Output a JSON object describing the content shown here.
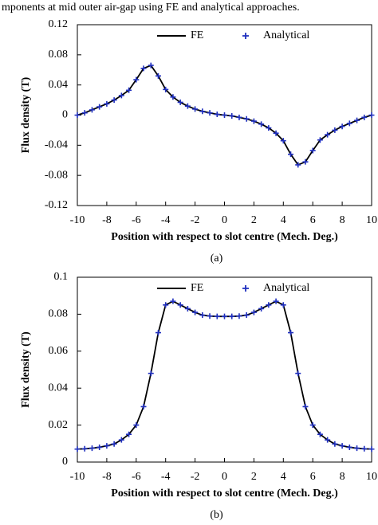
{
  "caption": "mponents at mid outer air-gap using FE and analytical approaches.",
  "chart_data": [
    {
      "type": "line",
      "label": "(a)",
      "xlabel": "Position with respect to slot centre (Mech. Deg.)",
      "ylabel": "Flux density (T)",
      "x": [
        -10,
        -9.5,
        -9,
        -8.5,
        -8,
        -7.5,
        -7,
        -6.5,
        -6,
        -5.5,
        -5,
        -4.5,
        -4,
        -3.5,
        -3,
        -2.5,
        -2,
        -1.5,
        -1,
        -0.5,
        0,
        0.5,
        1,
        1.5,
        2,
        2.5,
        3,
        3.5,
        4,
        4.5,
        5,
        5.5,
        6,
        6.5,
        7,
        7.5,
        8,
        8.5,
        9,
        9.5,
        10
      ],
      "series": [
        {
          "name": "FE",
          "color": "#000000",
          "marker": "none",
          "values": [
            0,
            0.003,
            0.007,
            0.011,
            0.015,
            0.02,
            0.026,
            0.033,
            0.047,
            0.062,
            0.066,
            0.052,
            0.034,
            0.024,
            0.017,
            0.012,
            0.008,
            0.005,
            0.003,
            0.001,
            0,
            -0.001,
            -0.003,
            -0.005,
            -0.008,
            -0.012,
            -0.017,
            -0.024,
            -0.034,
            -0.052,
            -0.066,
            -0.062,
            -0.047,
            -0.033,
            -0.026,
            -0.02,
            -0.015,
            -0.011,
            -0.007,
            -0.003,
            0
          ]
        },
        {
          "name": "Analytical",
          "color": "#1f2fbf",
          "marker": "plus",
          "values": [
            0,
            0.003,
            0.007,
            0.011,
            0.015,
            0.02,
            0.026,
            0.033,
            0.047,
            0.062,
            0.066,
            0.052,
            0.034,
            0.024,
            0.017,
            0.012,
            0.008,
            0.005,
            0.003,
            0.001,
            0,
            -0.001,
            -0.003,
            -0.005,
            -0.008,
            -0.012,
            -0.017,
            -0.024,
            -0.034,
            -0.052,
            -0.066,
            -0.062,
            -0.047,
            -0.033,
            -0.026,
            -0.02,
            -0.015,
            -0.011,
            -0.007,
            -0.003,
            0
          ]
        }
      ],
      "xlim": [
        -10,
        10
      ],
      "xticks": [
        -10,
        -8,
        -6,
        -4,
        -2,
        0,
        2,
        4,
        6,
        8,
        10
      ],
      "ylim": [
        -0.12,
        0.12
      ],
      "yticks": [
        -0.12,
        -0.08,
        -0.04,
        0,
        0.04,
        0.08,
        0.12
      ]
    },
    {
      "type": "line",
      "label": "(b)",
      "xlabel": "Position with respect to slot centre (Mech. Deg.)",
      "ylabel": "Flux density (T)",
      "x": [
        -10,
        -9.5,
        -9,
        -8.5,
        -8,
        -7.5,
        -7,
        -6.5,
        -6,
        -5.5,
        -5,
        -4.5,
        -4,
        -3.5,
        -3,
        -2.5,
        -2,
        -1.5,
        -1,
        -0.5,
        0,
        0.5,
        1,
        1.5,
        2,
        2.5,
        3,
        3.5,
        4,
        4.5,
        5,
        5.5,
        6,
        6.5,
        7,
        7.5,
        8,
        8.5,
        9,
        9.5,
        10
      ],
      "series": [
        {
          "name": "FE",
          "color": "#000000",
          "marker": "none",
          "values": [
            0.007,
            0.0072,
            0.0075,
            0.008,
            0.0088,
            0.0098,
            0.012,
            0.015,
            0.02,
            0.03,
            0.048,
            0.07,
            0.085,
            0.087,
            0.085,
            0.083,
            0.081,
            0.0795,
            0.079,
            0.0788,
            0.0788,
            0.0788,
            0.079,
            0.0795,
            0.081,
            0.083,
            0.085,
            0.087,
            0.085,
            0.07,
            0.048,
            0.03,
            0.02,
            0.015,
            0.012,
            0.0098,
            0.0088,
            0.008,
            0.0075,
            0.0072,
            0.007
          ]
        },
        {
          "name": "Analytical",
          "color": "#1f2fbf",
          "marker": "plus",
          "values": [
            0.007,
            0.0072,
            0.0075,
            0.008,
            0.0088,
            0.0098,
            0.012,
            0.015,
            0.02,
            0.03,
            0.048,
            0.07,
            0.085,
            0.087,
            0.085,
            0.083,
            0.081,
            0.0795,
            0.079,
            0.0788,
            0.0788,
            0.0788,
            0.079,
            0.0795,
            0.081,
            0.083,
            0.085,
            0.087,
            0.085,
            0.07,
            0.048,
            0.03,
            0.02,
            0.015,
            0.012,
            0.0098,
            0.0088,
            0.008,
            0.0075,
            0.0072,
            0.007
          ]
        }
      ],
      "xlim": [
        -10,
        10
      ],
      "xticks": [
        -10,
        -8,
        -6,
        -4,
        -2,
        0,
        2,
        4,
        6,
        8,
        10
      ],
      "ylim": [
        0,
        0.1
      ],
      "yticks": [
        0,
        0.02,
        0.04,
        0.06,
        0.08,
        0.1
      ]
    }
  ]
}
